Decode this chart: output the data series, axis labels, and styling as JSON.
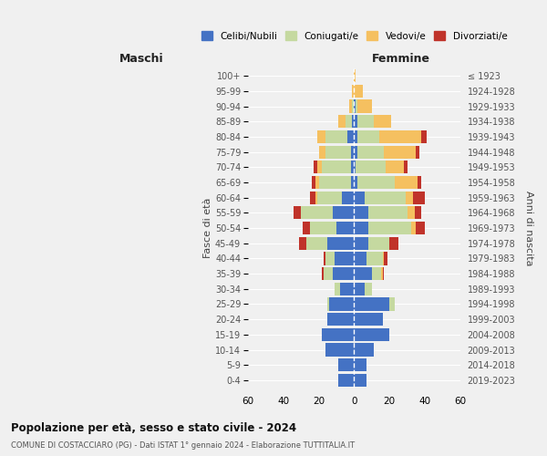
{
  "age_groups": [
    "0-4",
    "5-9",
    "10-14",
    "15-19",
    "20-24",
    "25-29",
    "30-34",
    "35-39",
    "40-44",
    "45-49",
    "50-54",
    "55-59",
    "60-64",
    "65-69",
    "70-74",
    "75-79",
    "80-84",
    "85-89",
    "90-94",
    "95-99",
    "100+"
  ],
  "birth_years": [
    "2019-2023",
    "2014-2018",
    "2009-2013",
    "2004-2008",
    "1999-2003",
    "1994-1998",
    "1989-1993",
    "1984-1988",
    "1979-1983",
    "1974-1978",
    "1969-1973",
    "1964-1968",
    "1959-1963",
    "1954-1958",
    "1949-1953",
    "1944-1948",
    "1939-1943",
    "1934-1938",
    "1929-1933",
    "1924-1928",
    "≤ 1923"
  ],
  "maschi_celibi": [
    9,
    9,
    16,
    18,
    15,
    14,
    8,
    12,
    11,
    15,
    10,
    12,
    7,
    2,
    2,
    2,
    4,
    1,
    0,
    0,
    0
  ],
  "maschi_coniugati": [
    0,
    0,
    0,
    0,
    0,
    1,
    3,
    5,
    5,
    12,
    15,
    18,
    14,
    18,
    16,
    14,
    12,
    4,
    1,
    0,
    0
  ],
  "maschi_vedovi": [
    0,
    0,
    0,
    0,
    0,
    0,
    0,
    0,
    0,
    0,
    0,
    0,
    1,
    2,
    3,
    4,
    5,
    4,
    2,
    1,
    0
  ],
  "maschi_divorziati": [
    0,
    0,
    0,
    0,
    0,
    0,
    0,
    1,
    1,
    4,
    4,
    4,
    3,
    2,
    2,
    0,
    0,
    0,
    0,
    0,
    0
  ],
  "femmine_celibi": [
    7,
    7,
    11,
    20,
    16,
    20,
    6,
    10,
    7,
    8,
    8,
    8,
    6,
    2,
    1,
    2,
    2,
    2,
    1,
    0,
    0
  ],
  "femmine_coniugati": [
    0,
    0,
    0,
    0,
    0,
    3,
    4,
    5,
    9,
    12,
    24,
    22,
    23,
    21,
    17,
    15,
    12,
    9,
    1,
    0,
    0
  ],
  "femmine_vedovi": [
    0,
    0,
    0,
    0,
    0,
    0,
    0,
    1,
    1,
    0,
    3,
    4,
    4,
    13,
    10,
    18,
    24,
    10,
    8,
    5,
    1
  ],
  "femmine_divorziati": [
    0,
    0,
    0,
    0,
    0,
    0,
    0,
    1,
    2,
    5,
    5,
    4,
    7,
    2,
    2,
    2,
    3,
    0,
    0,
    0,
    0
  ],
  "colors": {
    "celibi": "#4472c4",
    "coniugati": "#c5d9a0",
    "vedovi": "#f5c060",
    "divorziati": "#c0332a"
  },
  "xlim": 60,
  "title": "Popolazione per età, sesso e stato civile - 2024",
  "subtitle": "COMUNE DI COSTACCIARO (PG) - Dati ISTAT 1° gennaio 2024 - Elaborazione TUTTITALIA.IT",
  "ylabel_left": "Fasce di età",
  "ylabel_right": "Anni di nascita",
  "xlabel_left": "Maschi",
  "xlabel_right": "Femmine",
  "bg_color": "#f0f0f0",
  "bar_height": 0.85
}
